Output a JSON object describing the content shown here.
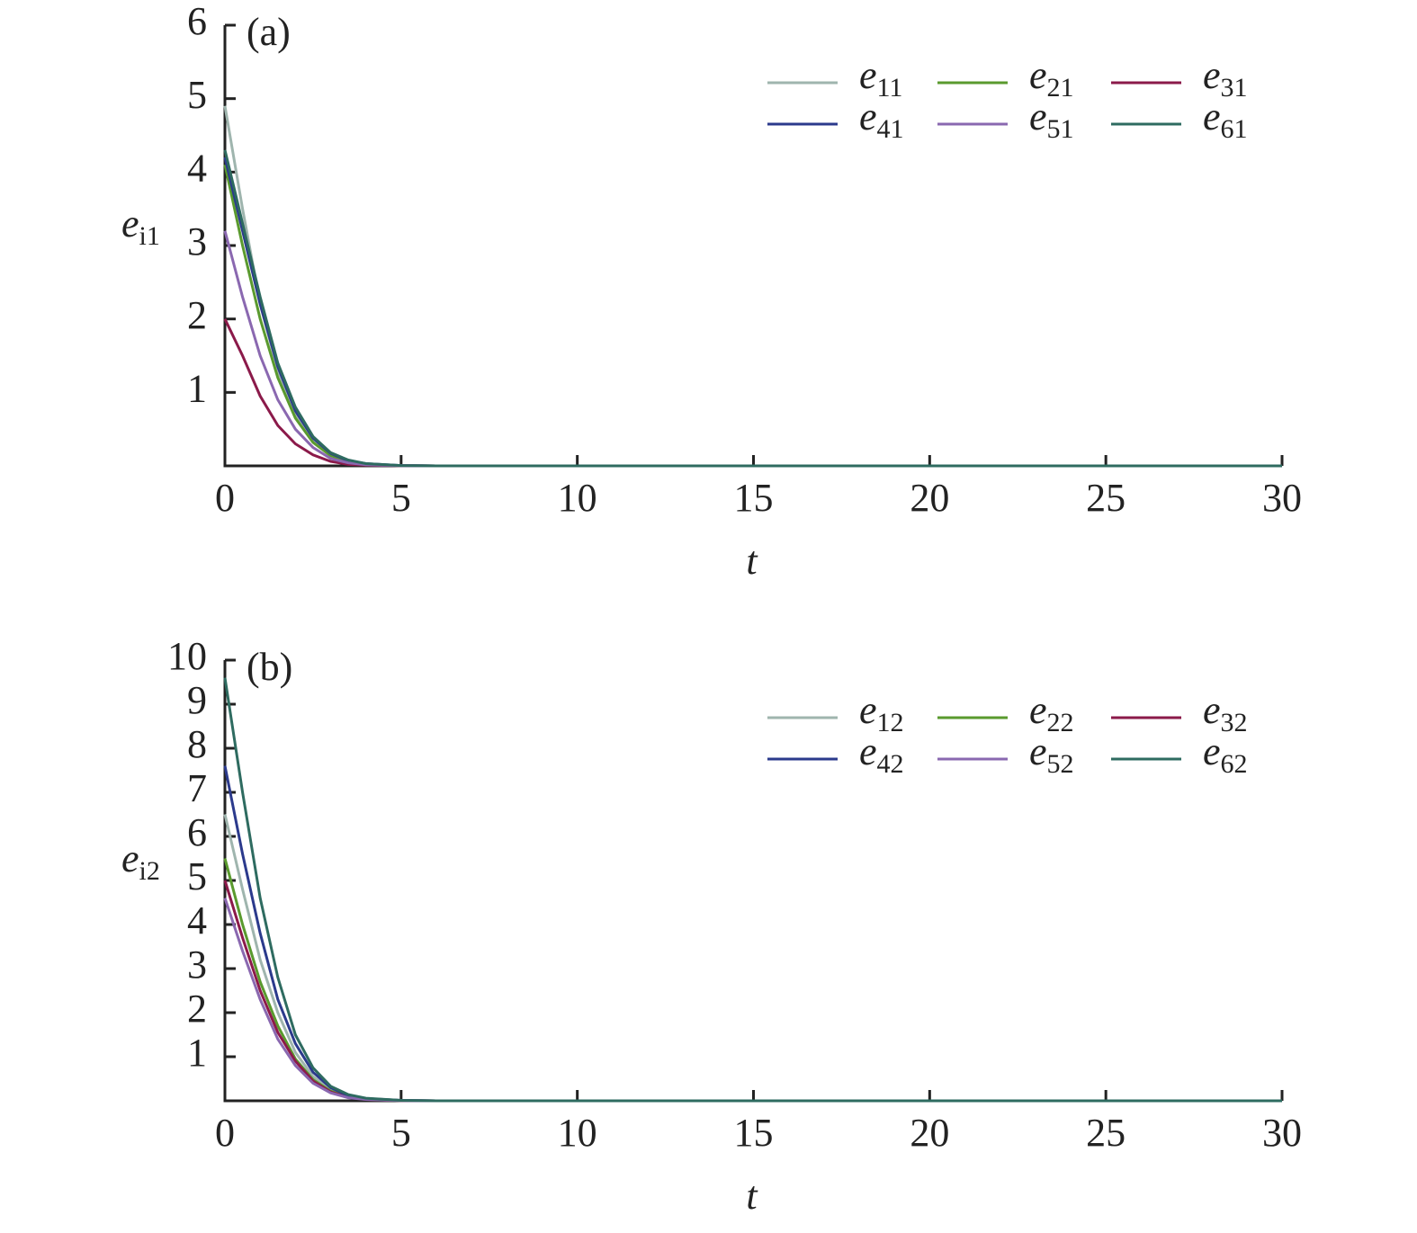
{
  "chart_data": [
    {
      "type": "line",
      "annotation": "(a)",
      "x_label": "t",
      "y_label": "ei1",
      "x": [
        0,
        0.5,
        1,
        1.5,
        2,
        2.5,
        3,
        3.5,
        4,
        5,
        6,
        8,
        10,
        15,
        20,
        25,
        30
      ],
      "series": [
        {
          "name": "e11",
          "color": "#9fb5ae",
          "values": [
            4.9,
            3.5,
            2.2,
            1.3,
            0.7,
            0.35,
            0.15,
            0.06,
            0.02,
            0.004,
            0,
            0,
            0,
            0,
            0,
            0,
            0
          ]
        },
        {
          "name": "e21",
          "color": "#5a9a2e",
          "values": [
            4.1,
            3.0,
            2.0,
            1.2,
            0.65,
            0.32,
            0.14,
            0.06,
            0.02,
            0.004,
            0,
            0,
            0,
            0,
            0,
            0,
            0
          ]
        },
        {
          "name": "e31",
          "color": "#8b1a4a",
          "values": [
            2.0,
            1.5,
            0.95,
            0.55,
            0.3,
            0.15,
            0.06,
            0.02,
            0.01,
            0.002,
            0,
            0,
            0,
            0,
            0,
            0,
            0
          ]
        },
        {
          "name": "e41",
          "color": "#2b3a8c",
          "values": [
            4.2,
            3.2,
            2.2,
            1.35,
            0.75,
            0.38,
            0.17,
            0.07,
            0.03,
            0.005,
            0,
            0,
            0,
            0,
            0,
            0,
            0
          ]
        },
        {
          "name": "e51",
          "color": "#8a68b0",
          "values": [
            3.2,
            2.3,
            1.5,
            0.9,
            0.5,
            0.25,
            0.1,
            0.04,
            0.015,
            0.003,
            0,
            0,
            0,
            0,
            0,
            0,
            0
          ]
        },
        {
          "name": "e61",
          "color": "#2e6b60",
          "values": [
            4.3,
            3.3,
            2.3,
            1.4,
            0.8,
            0.4,
            0.18,
            0.08,
            0.03,
            0.005,
            0,
            0,
            0,
            0,
            0,
            0,
            0
          ]
        }
      ],
      "xlim": [
        0,
        30
      ],
      "ylim": [
        0,
        6
      ],
      "xticks": [
        0,
        5,
        10,
        15,
        20,
        25,
        30
      ],
      "yticks": [
        1,
        2,
        3,
        4,
        5,
        6
      ],
      "legend": "upper right"
    },
    {
      "type": "line",
      "annotation": "(b)",
      "x_label": "t",
      "y_label": "ei2",
      "x": [
        0,
        0.5,
        1,
        1.5,
        2,
        2.5,
        3,
        3.5,
        4,
        5,
        6,
        8,
        10,
        15,
        20,
        25,
        30
      ],
      "series": [
        {
          "name": "e12",
          "color": "#9fb5ae",
          "values": [
            6.5,
            4.8,
            3.2,
            2.0,
            1.1,
            0.55,
            0.25,
            0.1,
            0.04,
            0.008,
            0,
            0,
            0,
            0,
            0,
            0,
            0
          ]
        },
        {
          "name": "e22",
          "color": "#5a9a2e",
          "values": [
            5.5,
            4.0,
            2.7,
            1.7,
            0.95,
            0.48,
            0.22,
            0.09,
            0.035,
            0.007,
            0,
            0,
            0,
            0,
            0,
            0,
            0
          ]
        },
        {
          "name": "e32",
          "color": "#8b1a4a",
          "values": [
            5.0,
            3.7,
            2.5,
            1.55,
            0.9,
            0.45,
            0.2,
            0.08,
            0.03,
            0.006,
            0,
            0,
            0,
            0,
            0,
            0,
            0
          ]
        },
        {
          "name": "e42",
          "color": "#2b3a8c",
          "values": [
            7.6,
            5.6,
            3.8,
            2.3,
            1.3,
            0.65,
            0.3,
            0.12,
            0.05,
            0.01,
            0,
            0,
            0,
            0,
            0,
            0,
            0
          ]
        },
        {
          "name": "e52",
          "color": "#8a68b0",
          "values": [
            4.6,
            3.4,
            2.3,
            1.4,
            0.8,
            0.4,
            0.18,
            0.07,
            0.03,
            0.005,
            0,
            0,
            0,
            0,
            0,
            0,
            0
          ]
        },
        {
          "name": "e62",
          "color": "#2e6b60",
          "values": [
            9.6,
            7.0,
            4.6,
            2.8,
            1.5,
            0.75,
            0.33,
            0.14,
            0.06,
            0.01,
            0,
            0,
            0,
            0,
            0,
            0,
            0
          ]
        }
      ],
      "xlim": [
        0,
        30
      ],
      "ylim": [
        0,
        10
      ],
      "xticks": [
        0,
        5,
        10,
        15,
        20,
        25,
        30
      ],
      "yticks": [
        1,
        2,
        3,
        4,
        5,
        6,
        7,
        8,
        9,
        10
      ],
      "legend": "upper right"
    }
  ]
}
